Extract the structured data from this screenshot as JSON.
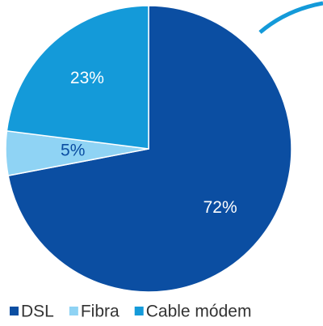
{
  "chart_data": {
    "type": "pie",
    "categories": [
      "DSL",
      "Fibra",
      "Cable módem"
    ],
    "values": [
      72,
      5,
      23
    ],
    "value_labels": [
      "72%",
      "5%",
      "23%"
    ],
    "colors": [
      "#0b4ea2",
      "#8fd3f4",
      "#149ad9"
    ],
    "label_colors": [
      "#ffffff",
      "#0b4ea2",
      "#ffffff"
    ],
    "legend": "bottom"
  }
}
